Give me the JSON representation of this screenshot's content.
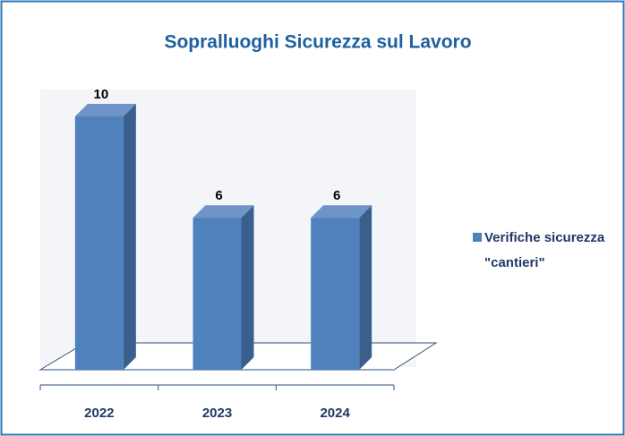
{
  "chart_data": {
    "type": "bar3d",
    "title": "Sopralluoghi Sicurezza sul Lavoro",
    "categories": [
      "2022",
      "2023",
      "2024"
    ],
    "series": [
      {
        "name": "Verifiche sicurezza \"cantieri\"",
        "color": "#4f81bd",
        "values": [
          10,
          6,
          6
        ]
      }
    ],
    "data_labels": true,
    "legend": "right"
  }
}
